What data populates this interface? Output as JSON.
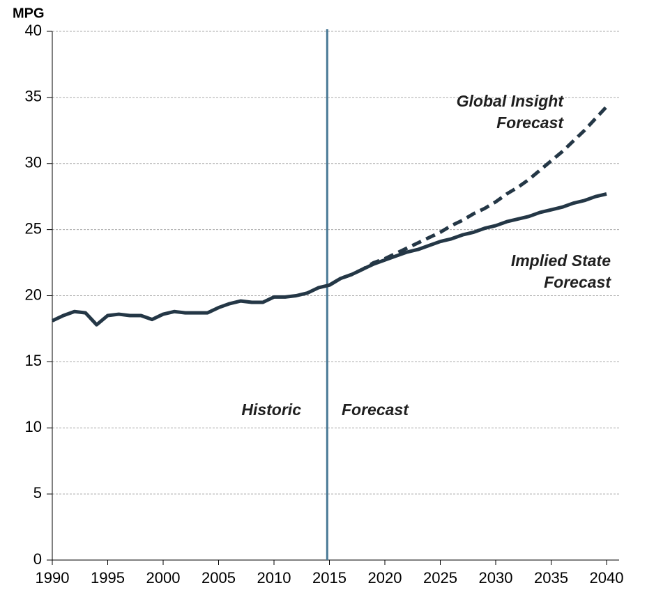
{
  "chart_data": {
    "type": "line",
    "y_label": "MPG",
    "x": [
      1990,
      1991,
      1992,
      1993,
      1994,
      1995,
      1996,
      1997,
      1998,
      1999,
      2000,
      2001,
      2002,
      2003,
      2004,
      2005,
      2006,
      2007,
      2008,
      2009,
      2010,
      2011,
      2012,
      2013,
      2014,
      2015,
      2016,
      2017,
      2018,
      2019,
      2020,
      2021,
      2022,
      2023,
      2024,
      2025,
      2026,
      2027,
      2028,
      2029,
      2030,
      2031,
      2032,
      2033,
      2034,
      2035,
      2036,
      2037,
      2038,
      2039,
      2040
    ],
    "series": [
      {
        "color": "#243746",
        "dashed": false,
        "values": [
          18.1,
          18.5,
          18.8,
          18.7,
          17.8,
          18.5,
          18.6,
          18.5,
          18.5,
          18.2,
          18.6,
          18.8,
          18.7,
          18.7,
          18.7,
          19.1,
          19.4,
          19.6,
          19.5,
          19.5,
          19.9,
          19.9,
          20.0,
          20.2,
          20.6,
          20.8,
          21.3,
          21.6,
          22.0,
          22.4,
          22.7,
          23.0,
          23.3,
          23.5,
          23.8,
          24.1,
          24.3,
          24.6,
          24.8,
          25.1,
          25.3,
          25.6,
          25.8,
          26.0,
          26.3,
          26.5,
          26.7,
          27.0,
          27.2,
          27.5,
          27.7
        ]
      },
      {
        "color": "#243746",
        "dashed": true,
        "values": [
          null,
          null,
          null,
          null,
          null,
          null,
          null,
          null,
          null,
          null,
          null,
          null,
          null,
          null,
          null,
          null,
          null,
          null,
          null,
          null,
          null,
          null,
          null,
          null,
          null,
          20.8,
          21.3,
          21.6,
          22.0,
          22.5,
          22.8,
          23.2,
          23.6,
          24.0,
          24.4,
          24.8,
          25.3,
          25.7,
          26.2,
          26.6,
          27.1,
          27.7,
          28.2,
          28.8,
          29.5,
          30.2,
          30.9,
          31.7,
          32.5,
          33.4,
          34.3
        ]
      }
    ],
    "divider": {
      "x": 2014.8,
      "color": "#4a7a96"
    },
    "annotations": [
      {
        "lines": [
          "Historic"
        ]
      },
      {
        "lines": [
          "Forecast"
        ]
      },
      {
        "lines": [
          "Global Insight",
          "Forecast"
        ]
      },
      {
        "lines": [
          "Implied State",
          "Forecast"
        ]
      }
    ],
    "xlim": [
      1990,
      2040
    ],
    "xticks": [
      1990,
      1995,
      2000,
      2005,
      2010,
      2015,
      2020,
      2025,
      2030,
      2035,
      2040
    ],
    "ylim": [
      0,
      40
    ],
    "yticks": [
      0,
      5,
      10,
      15,
      20,
      25,
      30,
      35,
      40
    ],
    "grid": true
  }
}
